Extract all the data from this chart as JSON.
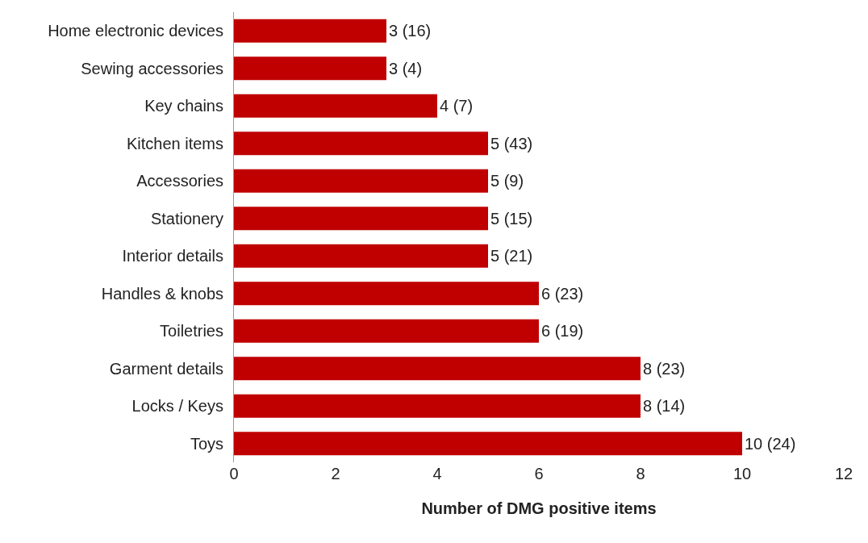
{
  "chart_data": {
    "type": "bar",
    "orientation": "horizontal",
    "xlabel": "Number of DMG positive items",
    "categories": [
      "Home electronic devices",
      "Sewing accessories",
      "Key chains",
      "Kitchen items",
      "Accessories",
      "Stationery",
      "Interior details",
      "Handles & knobs",
      "Toiletries",
      "Garment details",
      "Locks / Keys",
      "Toys"
    ],
    "values": [
      3,
      3,
      4,
      5,
      5,
      5,
      5,
      6,
      6,
      8,
      8,
      10
    ],
    "value_labels": [
      "3 (16)",
      "3 (4)",
      "4 (7)",
      "5 (43)",
      "5 (9)",
      "5 (15)",
      "5 (21)",
      "6 (23)",
      "6 (19)",
      "8 (23)",
      "8 (14)",
      "10 (24)"
    ],
    "color": "#c00000",
    "xlim": [
      0,
      12
    ],
    "xticks": [
      0,
      2,
      4,
      6,
      8,
      10,
      12
    ],
    "grid": false,
    "legend": false
  }
}
